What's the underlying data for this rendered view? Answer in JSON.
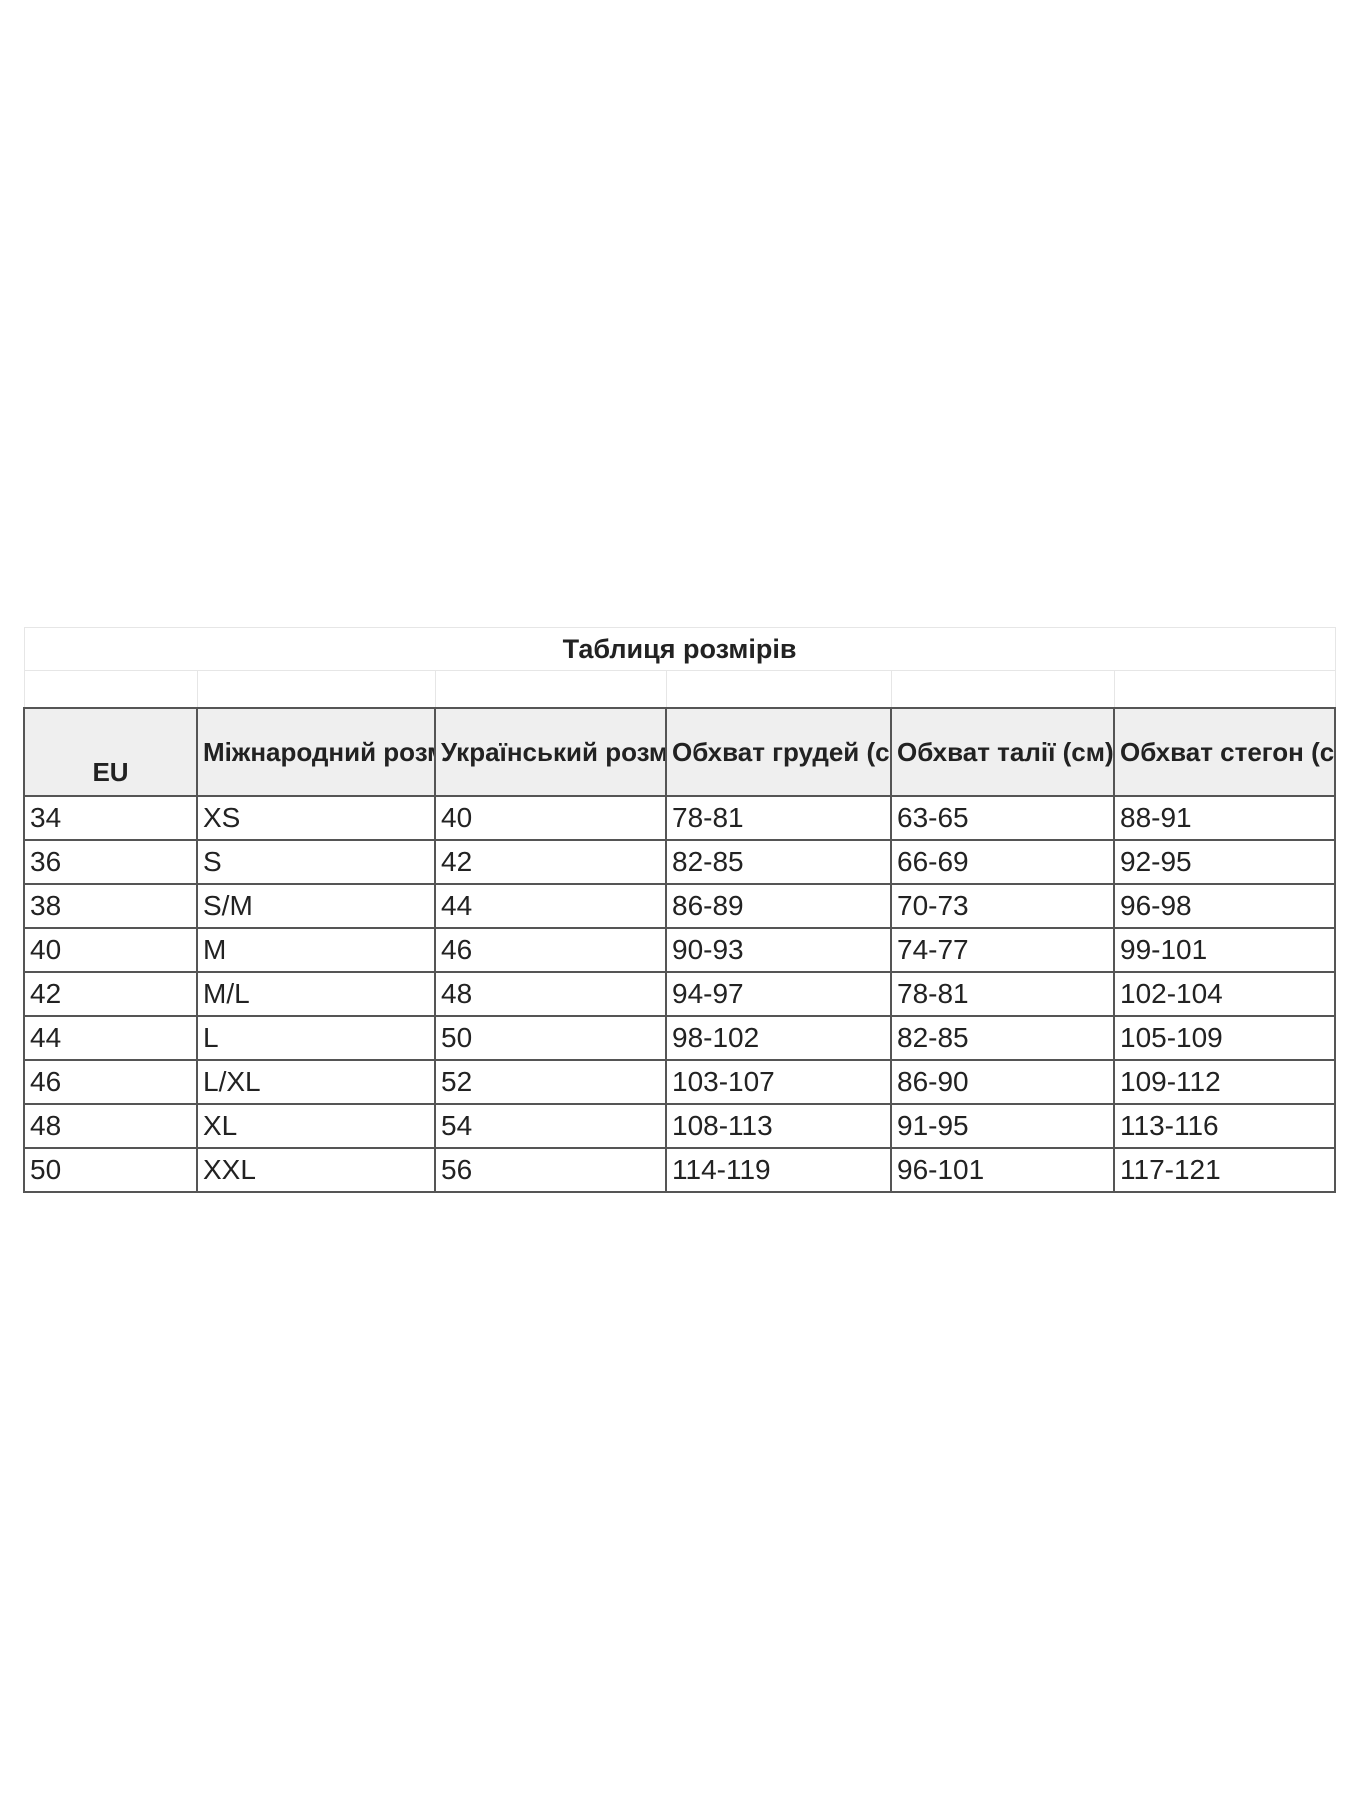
{
  "title": "Таблиця розмірів",
  "headers": [
    "EU",
    "Міжнародний розмір",
    "Український розмір",
    "Обхват грудей (см)",
    "Обхват талії (см)",
    "Обхват стегон (см)"
  ],
  "rows": [
    [
      "34",
      "XS",
      "40",
      "78-81",
      "63-65",
      "88-91"
    ],
    [
      "36",
      "S",
      "42",
      "82-85",
      "66-69",
      "92-95"
    ],
    [
      "38",
      "S/M",
      "44",
      "86-89",
      "70-73",
      "96-98"
    ],
    [
      "40",
      "M",
      "46",
      "90-93",
      "74-77",
      "99-101"
    ],
    [
      "42",
      "M/L",
      "48",
      "94-97",
      "78-81",
      "102-104"
    ],
    [
      "44",
      "L",
      "50",
      "98-102",
      "82-85",
      "105-109"
    ],
    [
      "46",
      "L/XL",
      "52",
      "103-107",
      "86-90",
      "109-112"
    ],
    [
      "48",
      "XL",
      "54",
      "108-113",
      "91-95",
      "113-116"
    ],
    [
      "50",
      "XXL",
      "56",
      "114-119",
      "96-101",
      "117-121"
    ]
  ]
}
